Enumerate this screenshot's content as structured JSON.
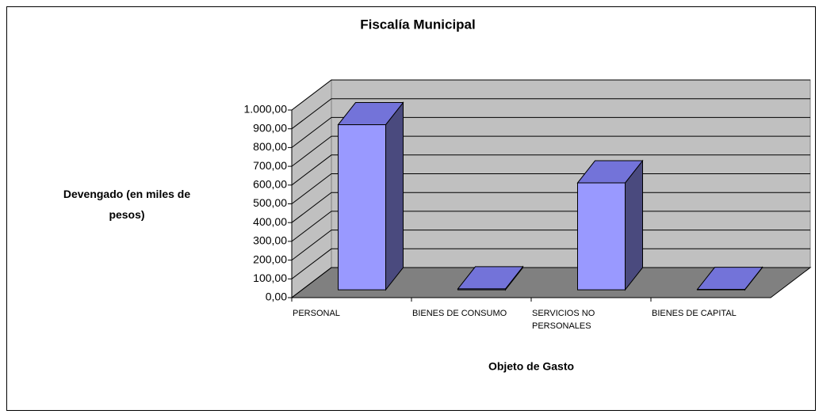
{
  "chart_data": {
    "type": "bar3d",
    "title": "Fiscalía Municipal",
    "ylabel": "Devengado (en miles de pesos)",
    "xlabel": "Objeto de Gasto",
    "categories": [
      "PERSONAL",
      "BIENES DE CONSUMO",
      "SERVICIOS NO PERSONALES",
      "BIENES DE CAPITAL"
    ],
    "values": [
      880,
      5,
      570,
      2
    ],
    "color": "#9999ff",
    "ylim": [
      0,
      1000
    ],
    "yticks": [
      {
        "value": 0,
        "label": "0,00"
      },
      {
        "value": 100,
        "label": "100,00"
      },
      {
        "value": 200,
        "label": "200,00"
      },
      {
        "value": 300,
        "label": "300,00"
      },
      {
        "value": 400,
        "label": "400,00"
      },
      {
        "value": 500,
        "label": "500,00"
      },
      {
        "value": 600,
        "label": "600,00"
      },
      {
        "value": 700,
        "label": "700,00"
      },
      {
        "value": 800,
        "label": "800,00"
      },
      {
        "value": 900,
        "label": "900,00"
      },
      {
        "value": 1000,
        "label": "1.000,00"
      }
    ],
    "grid": true
  }
}
